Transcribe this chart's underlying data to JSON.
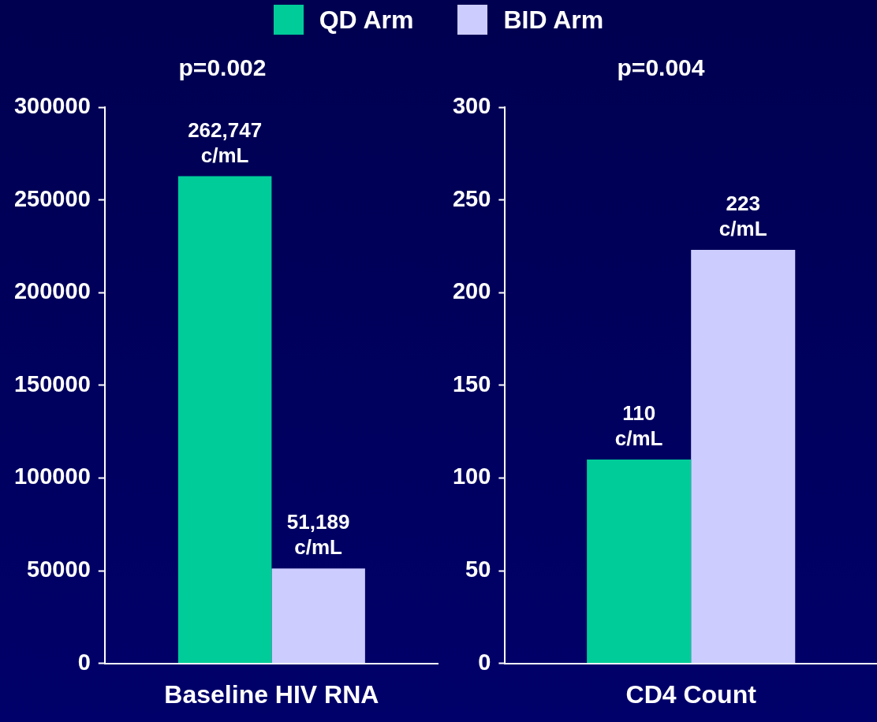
{
  "chart_data": [
    {
      "type": "bar",
      "title": "p=0.002",
      "categories": [
        "Baseline HIV RNA"
      ],
      "legend": "top",
      "ylim": [
        0,
        300000
      ],
      "yticks": [
        0,
        50000,
        100000,
        150000,
        200000,
        250000,
        300000
      ],
      "series": [
        {
          "name": "QD Arm",
          "color": "#00cc99",
          "values": [
            262747
          ],
          "value_labels": [
            "262,747 c/mL"
          ]
        },
        {
          "name": "BID Arm",
          "color": "#ccccff",
          "values": [
            51189
          ],
          "value_labels": [
            "51,189 c/mL"
          ]
        }
      ]
    },
    {
      "type": "bar",
      "title": "p=0.004",
      "categories": [
        "CD4 Count"
      ],
      "ylim": [
        0,
        300
      ],
      "yticks": [
        0,
        50,
        100,
        150,
        200,
        250,
        300
      ],
      "series": [
        {
          "color": "#00cc99",
          "values": [
            110
          ],
          "value_labels": [
            "110 c/mL"
          ]
        },
        {
          "color": "#ccccff",
          "values": [
            223
          ],
          "value_labels": [
            "223 c/mL"
          ]
        }
      ]
    }
  ]
}
